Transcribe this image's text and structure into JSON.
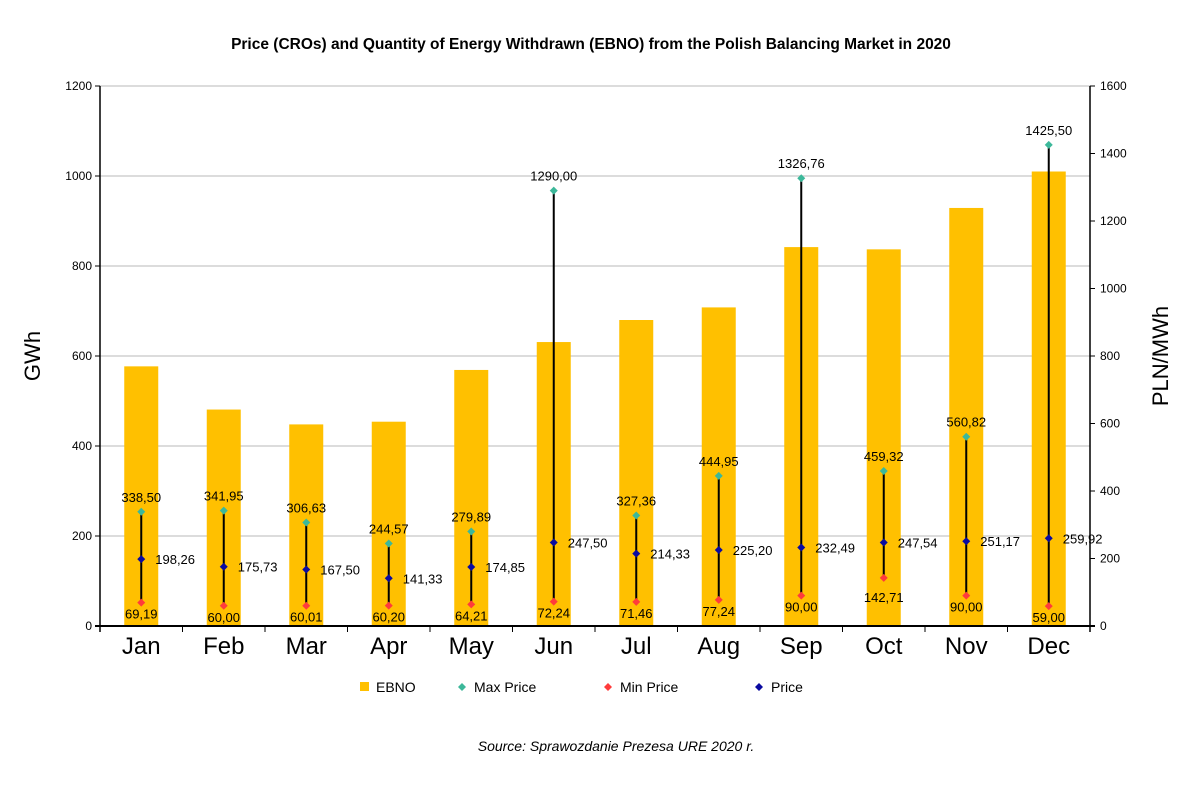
{
  "chart_data": {
    "type": "bar",
    "title": "Price (CROs) and  Quantity of Energy Withdrawn (EBNO) from the Polish Balancing Market in 2020",
    "ylabel": "GWh",
    "y2label": "PLN/MWh",
    "ylim": [
      0,
      1200
    ],
    "y2lim": [
      0,
      1600
    ],
    "yticks": [
      "0",
      "200",
      "400",
      "600",
      "800",
      "1000",
      "1200"
    ],
    "y2ticks": [
      "0",
      "200",
      "400",
      "600",
      "800",
      "1000",
      "1200",
      "1400",
      "1600"
    ],
    "grid": true,
    "legend_position": "bottom",
    "categories": [
      "Jan",
      "Feb",
      "Mar",
      "Apr",
      "May",
      "Jun",
      "Jul",
      "Aug",
      "Sep",
      "Oct",
      "Nov",
      "Dec"
    ],
    "series": [
      {
        "name": "EBNO",
        "axis": "left",
        "type": "bar",
        "color": "#FFC000",
        "values": [
          577,
          481,
          448,
          454,
          569,
          631,
          680,
          708,
          842,
          837,
          929,
          1010
        ]
      },
      {
        "name": "Max Price",
        "axis": "right",
        "type": "point",
        "color": "#3CB89A",
        "values": [
          338.5,
          341.95,
          306.63,
          244.57,
          279.89,
          1290.0,
          327.36,
          444.95,
          1326.76,
          459.32,
          560.82,
          1425.5
        ],
        "labels": [
          "338,50",
          "341,95",
          "306,63",
          "244,57",
          "279,89",
          "1290,00",
          "327,36",
          "444,95",
          "1326,76",
          "459,32",
          "560,82",
          "1425,50"
        ]
      },
      {
        "name": "Min Price",
        "axis": "right",
        "type": "point",
        "color": "#FF3B3B",
        "values": [
          69.19,
          60.0,
          60.01,
          60.2,
          64.21,
          72.24,
          71.46,
          77.24,
          90.0,
          142.71,
          90.0,
          59.0
        ],
        "labels": [
          "69,19",
          "60,00",
          "60,01",
          "60,20",
          "64,21",
          "72,24",
          "71,46",
          "77,24",
          "90,00",
          "142,71",
          "90,00",
          "59,00"
        ]
      },
      {
        "name": "Price",
        "axis": "right",
        "type": "point",
        "color": "#0A0AA0",
        "values": [
          198.26,
          175.73,
          167.5,
          141.33,
          174.85,
          247.5,
          214.33,
          225.2,
          232.49,
          247.54,
          251.17,
          259.92
        ],
        "labels": [
          "198,26",
          "175,73",
          "167,50",
          "141,33",
          "174,85",
          "247,50",
          "214,33",
          "225,20",
          "232,49",
          "247,54",
          "251,17",
          "259,92"
        ]
      }
    ],
    "source": "Source: Sprawozdanie Prezesa URE 2020 r."
  }
}
